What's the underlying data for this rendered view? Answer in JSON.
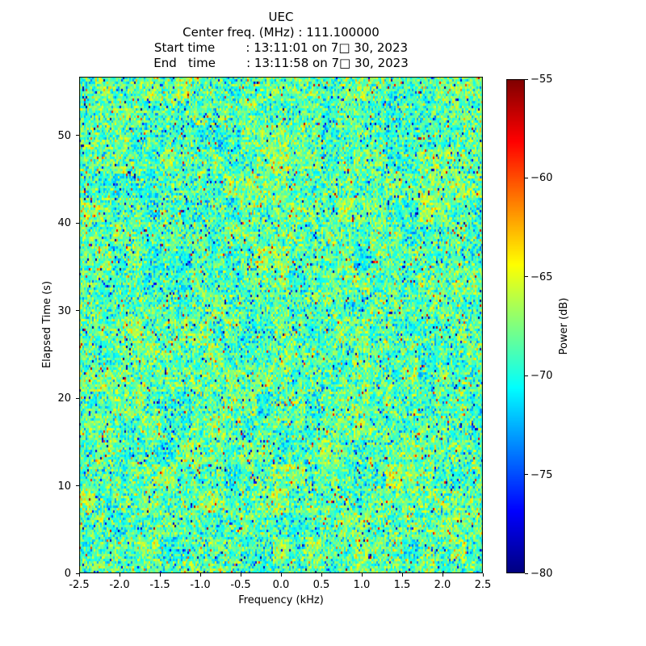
{
  "chart_data": {
    "type": "heatmap",
    "title_lines": [
      "UEC",
      "Center freq. (MHz) : 111.100000",
      "Start time        : 13:11:01 on 7□ 30, 2023",
      "End   time        : 13:11:58 on 7□ 30, 2023"
    ],
    "xlabel": "Frequency (kHz)",
    "ylabel": "Elapsed Time (s)",
    "colorbar_label": "Power (dB)",
    "xlim": [
      -2.5,
      2.5
    ],
    "ylim": [
      0,
      56.7
    ],
    "clim": [
      -80,
      -55
    ],
    "x_tick_values": [
      -2.5,
      -2.0,
      -1.5,
      -1.0,
      -0.5,
      0.0,
      0.5,
      1.0,
      1.5,
      2.0,
      2.5
    ],
    "x_tick_labels": [
      "-2.5",
      "-2.0",
      "-1.5",
      "-1.0",
      "-0.5",
      "0.0",
      "0.5",
      "1.0",
      "1.5",
      "2.0",
      "2.5"
    ],
    "y_tick_values": [
      0,
      10,
      20,
      30,
      40,
      50
    ],
    "y_tick_labels": [
      "0",
      "10",
      "20",
      "30",
      "40",
      "50"
    ],
    "colorbar_tick_values": [
      -55,
      -60,
      -65,
      -70,
      -75,
      -80
    ],
    "colorbar_tick_labels": [
      "−55",
      "−60",
      "−65",
      "−70",
      "−75",
      "−80"
    ],
    "colormap": "jet",
    "grid": false,
    "legend_position": "colorbar-right",
    "noise_stats": {
      "mean_db": -68.5,
      "std_db": 2.2,
      "low_outlier_fraction": 0.015,
      "high_outlier_fraction": 0.01,
      "description": "uniform random noise spectrogram, no discernible signal features"
    }
  }
}
